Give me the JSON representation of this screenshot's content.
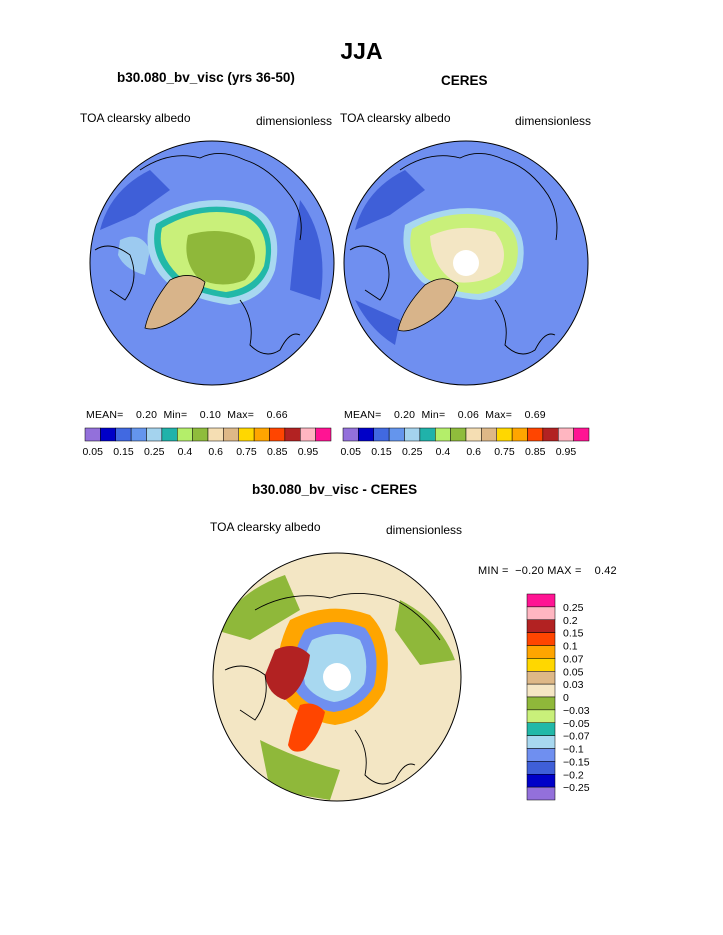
{
  "figure": {
    "season": "JJA",
    "colors": {
      "ocean": "#6f8ff0",
      "ocean_dark": "#3f5fd8",
      "ice_green": "#8fb83a",
      "ice_light": "#c9f07a",
      "teal": "#22b8a8",
      "light_blue": "#a8d8f0",
      "tan": "#d8b48a",
      "cream": "#f3e6c4",
      "white": "#ffffff"
    }
  },
  "panels": [
    {
      "title": "b30.080_bv_visc (yrs 36-50)",
      "var_label": "TOA clearsky albedo",
      "units": "dimensionless",
      "stats": {
        "mean_label": "MEAN=",
        "mean": "0.20",
        "min_label": "Min=",
        "min": "0.10",
        "max_label": "Max=",
        "max": "0.66"
      }
    },
    {
      "title": "CERES",
      "var_label": "TOA clearsky albedo",
      "units": "dimensionless",
      "stats": {
        "mean_label": "MEAN=",
        "mean": "0.20",
        "min_label": "Min=",
        "min": "0.06",
        "max_label": "Max=",
        "max": "0.69"
      }
    },
    {
      "title": "b30.080_bv_visc - CERES",
      "var_label": "TOA clearsky albedo",
      "units": "dimensionless",
      "stats": {
        "min_label": "MIN =",
        "min": "−0.20",
        "max_label": "MAX =",
        "max": "0.42"
      }
    }
  ],
  "chart_data": [
    {
      "type": "heatmap",
      "title": "b30.080_bv_visc (yrs 36-50)",
      "projection": "north polar stereographic",
      "colorbar": {
        "orientation": "horizontal",
        "levels": [
          "0.05",
          "0.15",
          "0.25",
          "0.4",
          "0.6",
          "0.75",
          "0.85",
          "0.95"
        ],
        "colors": [
          "#9370db",
          "#0000c8",
          "#4169e1",
          "#6495ed",
          "#a4d3ee",
          "#20b2aa",
          "#b4ee6a",
          "#8fbc3c",
          "#f5deb3",
          "#deb887",
          "#ffd700",
          "#ffa500",
          "#ff4500",
          "#b22222",
          "#ffb6c1",
          "#ff1493"
        ]
      }
    },
    {
      "type": "heatmap",
      "title": "CERES",
      "projection": "north polar stereographic",
      "colorbar": {
        "orientation": "horizontal",
        "levels": [
          "0.05",
          "0.15",
          "0.25",
          "0.4",
          "0.6",
          "0.75",
          "0.85",
          "0.95"
        ],
        "colors": [
          "#9370db",
          "#0000c8",
          "#4169e1",
          "#6495ed",
          "#a4d3ee",
          "#20b2aa",
          "#b4ee6a",
          "#8fbc3c",
          "#f5deb3",
          "#deb887",
          "#ffd700",
          "#ffa500",
          "#ff4500",
          "#b22222",
          "#ffb6c1",
          "#ff1493"
        ]
      }
    },
    {
      "type": "heatmap",
      "title": "b30.080_bv_visc - CERES",
      "projection": "north polar stereographic",
      "colorbar": {
        "orientation": "vertical",
        "levels": [
          "0.25",
          "0.2",
          "0.15",
          "0.1",
          "0.07",
          "0.05",
          "0.03",
          "0",
          "−0.03",
          "−0.05",
          "−0.07",
          "−0.1",
          "−0.15",
          "−0.2",
          "−0.25"
        ],
        "colors": [
          "#ff1493",
          "#ffb6c1",
          "#b22222",
          "#ff4500",
          "#ffa500",
          "#ffd700",
          "#deb887",
          "#f5e6c4",
          "#8fb83a",
          "#c9f07a",
          "#22b8a8",
          "#a8d8f0",
          "#6f8ff0",
          "#3f5fd8",
          "#0000c8",
          "#9370db"
        ]
      }
    }
  ]
}
